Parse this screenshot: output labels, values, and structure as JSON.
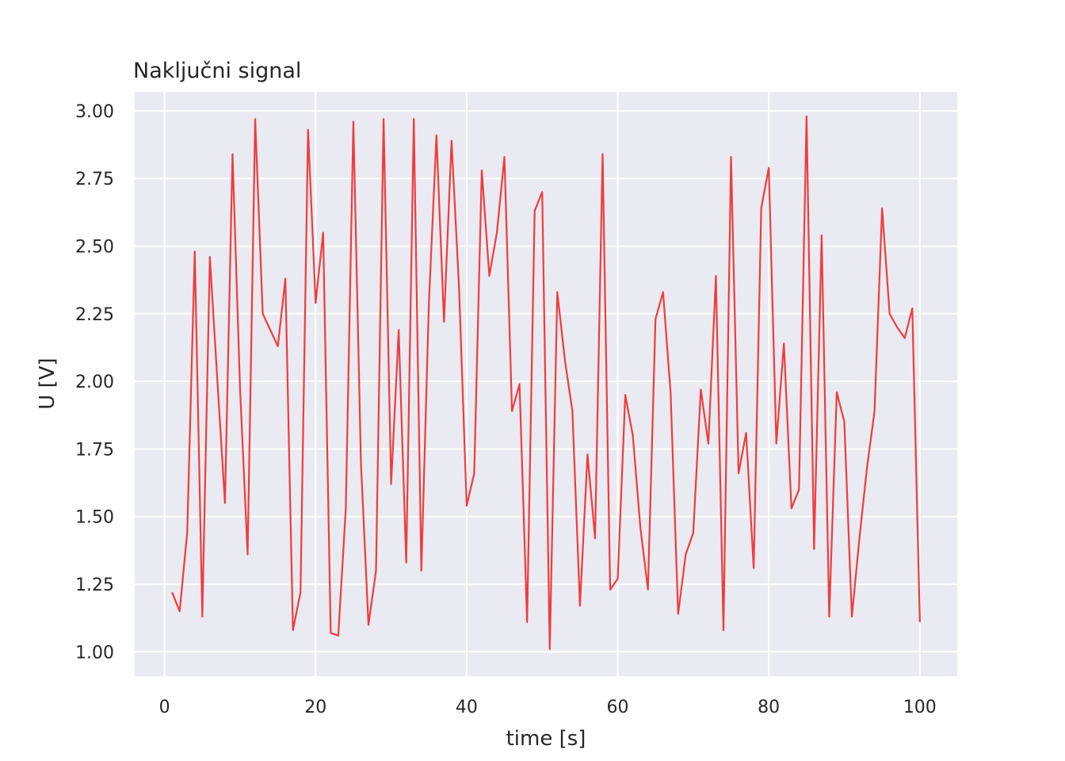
{
  "chart_data": {
    "type": "line",
    "title": "Naključni signal",
    "xlabel": "time [s]",
    "ylabel": "U [V]",
    "xlim": [
      -3.95,
      104.95
    ],
    "ylim": [
      0.91,
      3.07
    ],
    "xticks": [
      "0",
      "20",
      "40",
      "60",
      "80",
      "100"
    ],
    "yticks": [
      "1.00",
      "1.25",
      "1.50",
      "1.75",
      "2.00",
      "2.25",
      "2.50",
      "2.75",
      "3.00"
    ],
    "grid": true,
    "line_color": "#f03c3c",
    "background_color": "#eaeaf2",
    "series": [
      {
        "x": [
          1,
          2,
          3,
          4,
          5,
          6,
          7,
          8,
          9,
          10,
          11,
          12,
          13,
          14,
          15,
          16,
          17,
          18,
          19,
          20,
          21,
          22,
          23,
          24,
          25,
          26,
          27,
          28,
          29,
          30,
          31,
          32,
          33,
          34,
          35,
          36,
          37,
          38,
          39,
          40,
          41,
          42,
          43,
          44,
          45,
          46,
          47,
          48,
          49,
          50,
          51,
          52,
          53,
          54,
          55,
          56,
          57,
          58,
          59,
          60,
          61,
          62,
          63,
          64,
          65,
          66,
          67,
          68,
          69,
          70,
          71,
          72,
          73,
          74,
          75,
          76,
          77,
          78,
          79,
          80,
          81,
          82,
          83,
          84,
          85,
          86,
          87,
          88,
          89,
          90,
          91,
          92,
          93,
          94,
          95,
          96,
          97,
          98,
          99,
          100
        ],
        "y": [
          1.22,
          1.15,
          1.44,
          2.48,
          1.13,
          2.46,
          2.0,
          1.55,
          2.84,
          1.97,
          1.36,
          2.97,
          2.25,
          2.19,
          2.13,
          2.38,
          1.08,
          1.22,
          2.93,
          2.29,
          2.55,
          1.07,
          1.06,
          1.53,
          2.96,
          1.7,
          1.1,
          1.3,
          2.97,
          1.62,
          2.19,
          1.33,
          2.97,
          1.3,
          2.29,
          2.91,
          2.22,
          2.89,
          2.34,
          1.54,
          1.66,
          2.78,
          2.39,
          2.55,
          2.83,
          1.89,
          1.99,
          1.11,
          2.63,
          2.7,
          1.01,
          2.33,
          2.08,
          1.89,
          1.17,
          1.73,
          1.42,
          2.84,
          1.23,
          1.27,
          1.95,
          1.8,
          1.46,
          1.23,
          2.23,
          2.33,
          1.96,
          1.14,
          1.36,
          1.44,
          1.97,
          1.77,
          2.39,
          1.08,
          2.83,
          1.66,
          1.81,
          1.31,
          2.64,
          2.79,
          1.77,
          2.14,
          1.53,
          1.6,
          2.98,
          1.38,
          2.54,
          1.13,
          1.96,
          1.85,
          1.13,
          1.42,
          1.68,
          1.89,
          2.64,
          2.25,
          2.2,
          2.16,
          2.27,
          1.11
        ]
      }
    ]
  }
}
